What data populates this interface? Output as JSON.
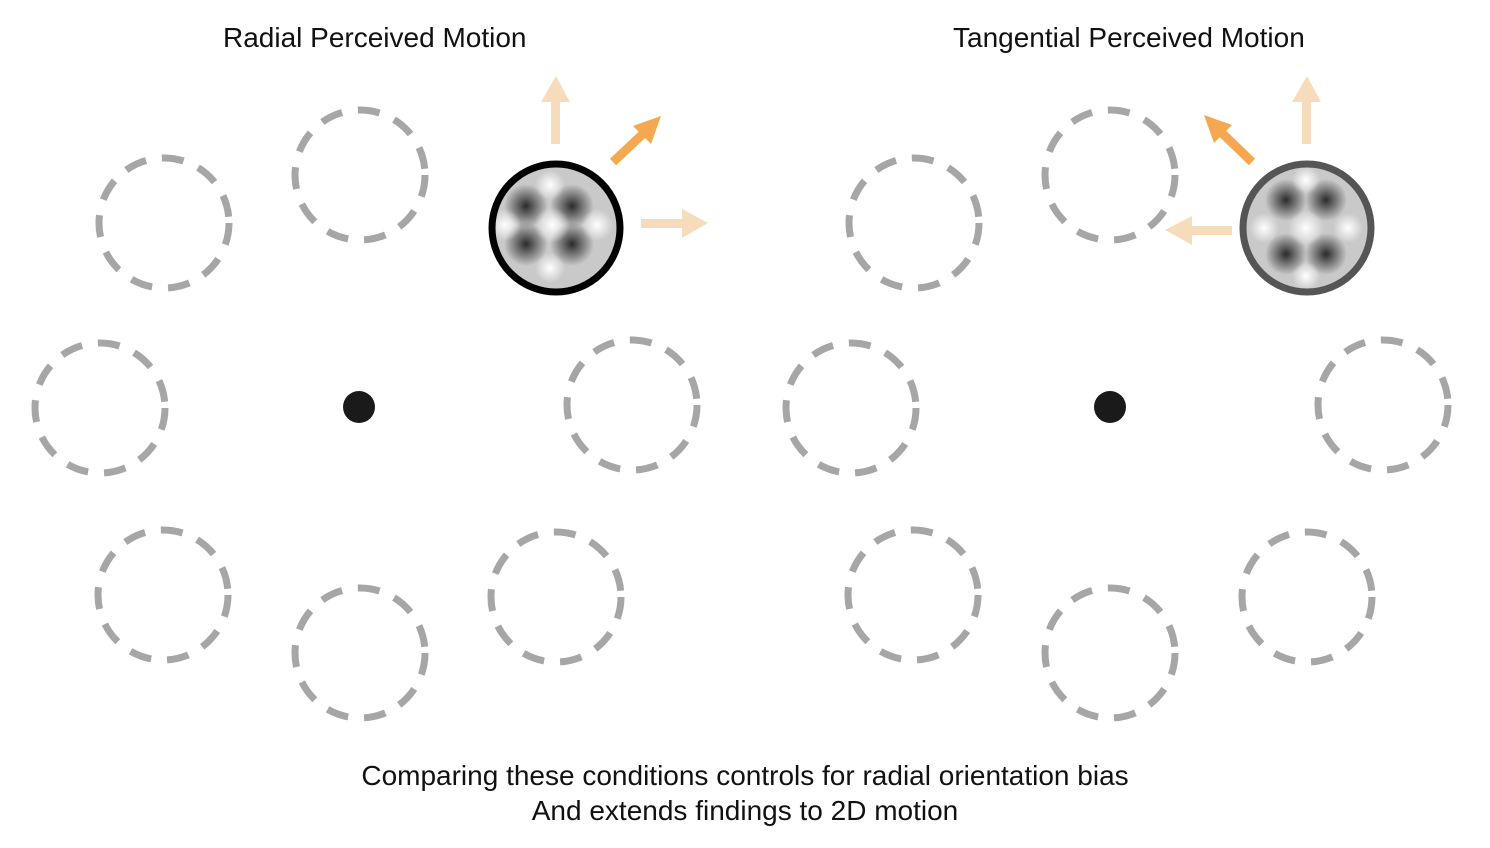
{
  "panels": [
    {
      "id": "radial",
      "title": "Radial Perceived Motion",
      "active_position": 2,
      "motion_direction": "radial"
    },
    {
      "id": "tangential",
      "title": "Tangential Perceived Motion",
      "active_position": 2,
      "motion_direction": "tangential"
    }
  ],
  "caption": {
    "line1": "Comparing these conditions controls for radial orientation bias",
    "line2": "And extends findings to 2D motion"
  },
  "colors": {
    "placeholder_ring": "#a6a6a6",
    "fixation": "#1a1a1a",
    "arrow_strong": "#f4a850",
    "arrow_faint": "#f7dcbc",
    "radial_ring": "#000000",
    "tangential_ring": "#555555"
  }
}
